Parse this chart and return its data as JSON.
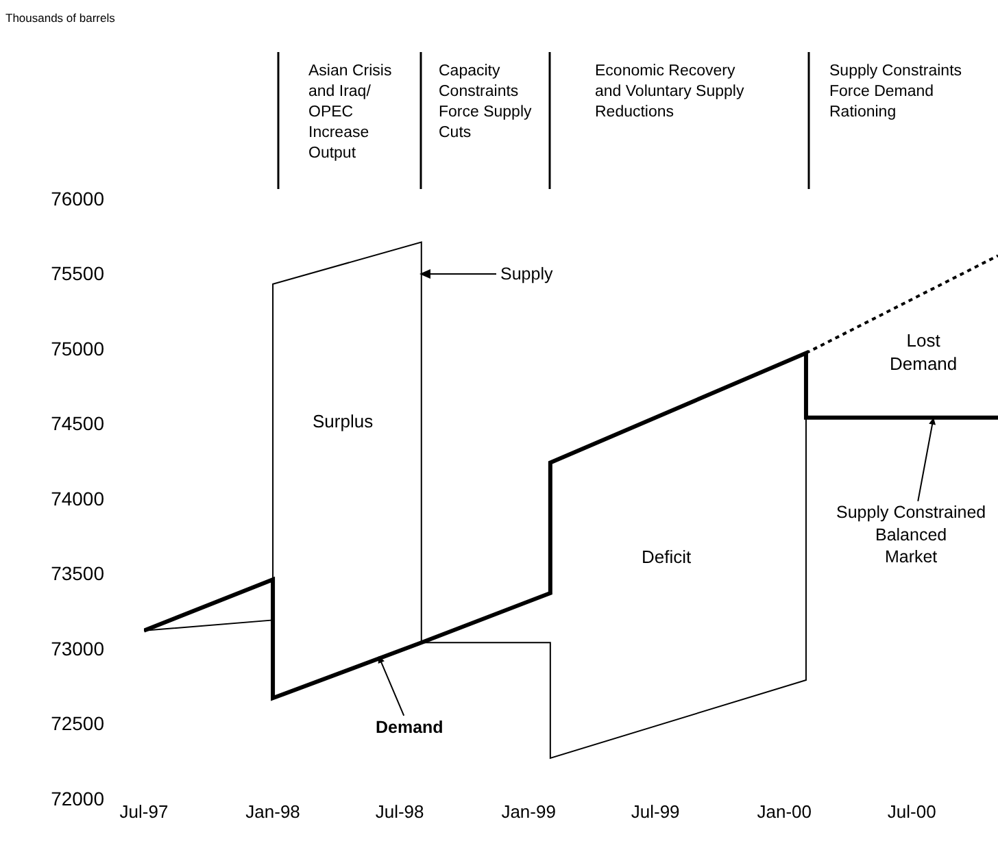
{
  "chart_data": {
    "type": "line",
    "xlim": [
      "1997-07",
      "2000-11"
    ],
    "ylim": [
      72000,
      76000
    ],
    "xticks": [
      {
        "value": "1997-07",
        "label": "Jul-97"
      },
      {
        "value": "1998-01",
        "label": "Jan-98"
      },
      {
        "value": "1998-07",
        "label": "Jul-98"
      },
      {
        "value": "1999-01",
        "label": "Jan-99"
      },
      {
        "value": "1999-07",
        "label": "Jul-99"
      },
      {
        "value": "2000-01",
        "label": "Jan-00"
      },
      {
        "value": "2000-07",
        "label": "Jul-00"
      }
    ],
    "yticks": [
      72000,
      72500,
      73000,
      73500,
      74000,
      74500,
      75000,
      75500,
      76000
    ],
    "grid": false,
    "line_style": "solid",
    "series": [
      {
        "color": "#000000",
        "x": [
          "1997-07",
          "1998-01",
          "1998-01",
          "1998-08",
          "1998-08",
          "1999-02",
          "1999-02",
          "2000-02",
          "2000-02",
          "2000-11"
        ],
        "values": [
          73120,
          73190,
          75430,
          75710,
          73040,
          73040,
          72270,
          72790,
          74540,
          74540
        ]
      },
      {
        "color": "#000000",
        "x": [
          "1997-07",
          "1998-01",
          "1998-01",
          "1998-08",
          "1999-02",
          "1999-02",
          "2000-02",
          "2000-02",
          "2000-11"
        ],
        "values": [
          73120,
          73460,
          72670,
          73040,
          73370,
          74240,
          74970,
          74540,
          74540
        ]
      },
      {
        "color": "#000000",
        "line_style": "dotted",
        "x": [
          "2000-02",
          "2000-11"
        ],
        "values": [
          74970,
          75620
        ]
      }
    ],
    "annotations": [
      "Thousands of barrels",
      "Surplus",
      "Deficit",
      "Lost\nDemand",
      "Asian Crisis\nand Iraq/\nOPEC\nIncrease\nOutput",
      "Capacity\nConstraints\nForce Supply\nCuts",
      "Economic Recovery\nand Voluntary Supply\nReductions",
      "Supply Constraints\nForce Demand\nRationing",
      "Supply",
      {
        "text": "Demand",
        "x": "1998-06",
        "y": 72950
      },
      {
        "text": "Supply Constrained\nBalanced\nMarket",
        "x": "2000-08",
        "y": 74540
      }
    ]
  }
}
